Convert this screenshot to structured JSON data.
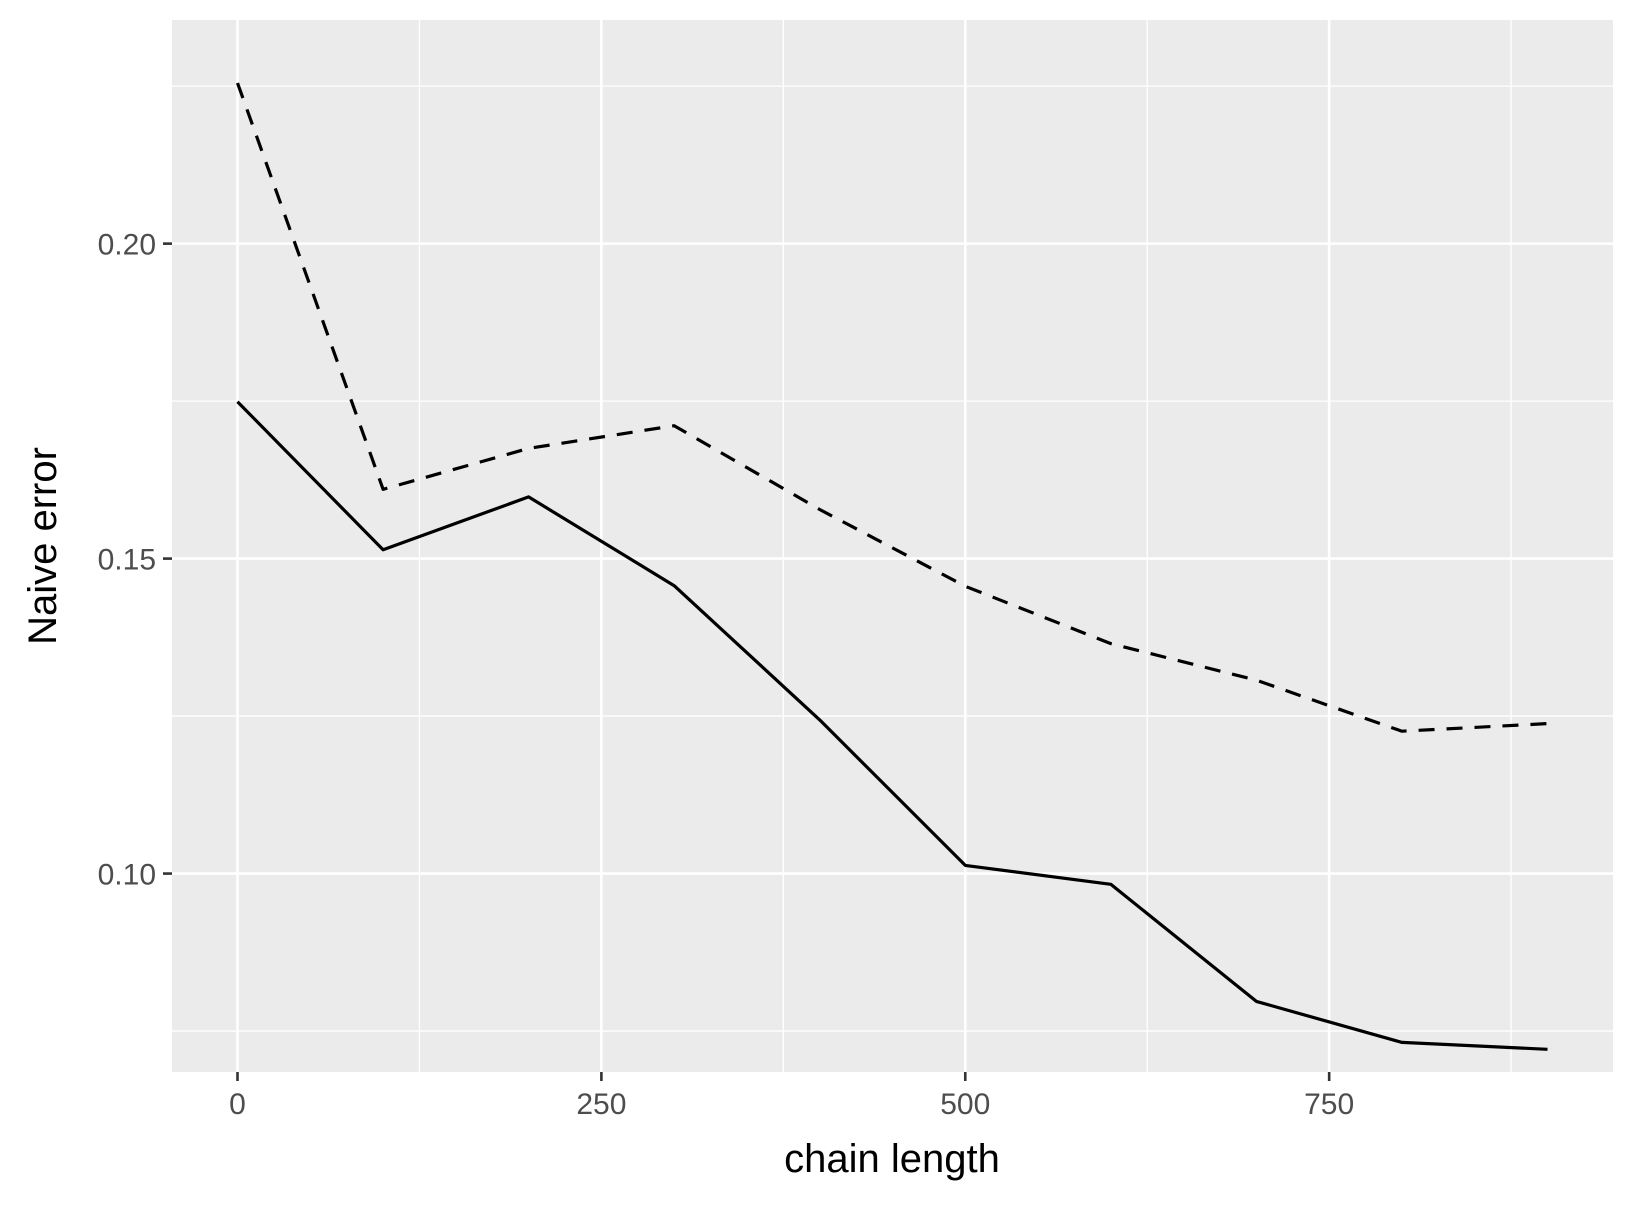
{
  "chart_data": {
    "type": "line",
    "title": "",
    "xlabel": "chain length",
    "ylabel": "Naive error",
    "x": [
      0,
      100,
      200,
      300,
      400,
      500,
      600,
      700,
      800,
      900
    ],
    "series": [
      {
        "line_style": "solid",
        "color": "#000000",
        "values": [
          0.1749,
          0.1514,
          0.1598,
          0.1457,
          0.1244,
          0.1013,
          0.0983,
          0.0797,
          0.0732,
          0.0721
        ]
      },
      {
        "line_style": "dashed",
        "color": "#000000",
        "values": [
          0.2255,
          0.161,
          0.1675,
          0.1711,
          0.1578,
          0.1456,
          0.1365,
          0.1307,
          0.1226,
          0.1238
        ]
      }
    ],
    "xlim": [
      -45,
      945
    ],
    "ylim": [
      0.0685,
      0.2355
    ],
    "x_ticks": [
      {
        "value": 0,
        "label": "0"
      },
      {
        "value": 250,
        "label": "250"
      },
      {
        "value": 500,
        "label": "500"
      },
      {
        "value": 750,
        "label": "750"
      }
    ],
    "x_minor_ticks": [
      125,
      375,
      625,
      875
    ],
    "y_ticks": [
      {
        "value": 0.1,
        "label": "0.10"
      },
      {
        "value": 0.15,
        "label": "0.15"
      },
      {
        "value": 0.2,
        "label": "0.20"
      }
    ],
    "y_minor_ticks": [
      0.075,
      0.125,
      0.175,
      0.225
    ],
    "grid": true,
    "legend": "none",
    "colors": {
      "panel_background": "#ebebeb",
      "grid_line": "#ffffff",
      "tick_label": "#4d4d4d",
      "axis_title": "#000000"
    }
  }
}
